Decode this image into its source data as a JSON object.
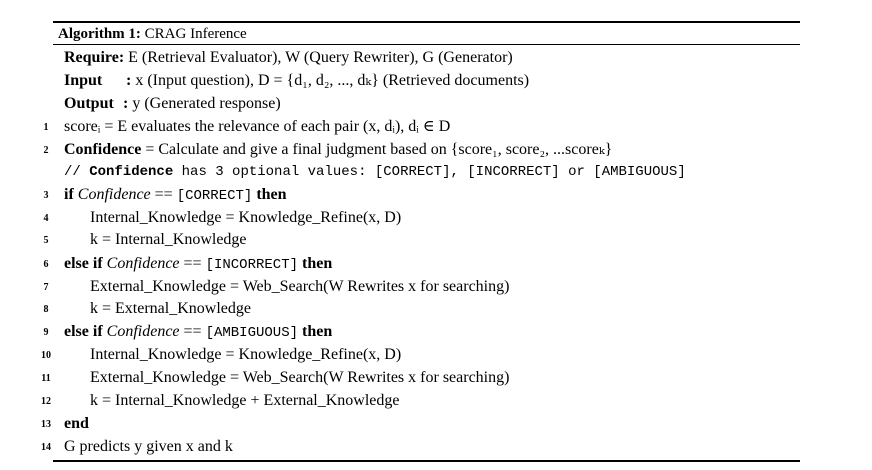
{
  "algorithm": {
    "caption_label": "Algorithm 1:",
    "caption_title": "CRAG Inference",
    "header": [
      {
        "kw": "Require",
        "sep": ":",
        "body": " E (Retrieval Evaluator), W (Query Rewriter), G (Generator)"
      },
      {
        "kw": "Input",
        "sep": ":",
        "body": " x (Input question), D = {d₁, d₂, ..., dₖ} (Retrieved documents)"
      },
      {
        "kw": "Output",
        "sep": ":",
        "body": " y (Generated response)"
      }
    ],
    "lines": [
      {
        "no": "1",
        "text": "scoreᵢ = E evaluates the relevance of each pair (x, dᵢ), dᵢ ∈ D"
      },
      {
        "no": "2",
        "kw": "Confidence",
        "text": " = Calculate and give a final judgment based on {score₁, score₂, ...scoreₖ}"
      },
      {
        "comment_prefix": "// ",
        "comment_kw": "Confidence",
        "comment_rest": " has 3 optional values: [CORRECT], [INCORRECT] or [AMBIGUOUS]"
      },
      {
        "no": "3",
        "kw": "if",
        "cond_var": " Confidence",
        "cond_op": " == ",
        "cond_val": "[CORRECT]",
        "kw2": " then"
      },
      {
        "no": "4",
        "text": "Internal_Knowledge = Knowledge_Refine(x, D)"
      },
      {
        "no": "5",
        "text": "k = Internal_Knowledge"
      },
      {
        "no": "6",
        "kw": "else if",
        "cond_var": " Confidence",
        "cond_op": " == ",
        "cond_val": "[INCORRECT]",
        "kw2": " then"
      },
      {
        "no": "7",
        "text": "External_Knowledge = Web_Search(W Rewrites x for searching)"
      },
      {
        "no": "8",
        "text": "k = External_Knowledge"
      },
      {
        "no": "9",
        "kw": "else if",
        "cond_var": " Confidence",
        "cond_op": " == ",
        "cond_val": "[AMBIGUOUS]",
        "kw2": " then"
      },
      {
        "no": "10",
        "text": "Internal_Knowledge = Knowledge_Refine(x, D)"
      },
      {
        "no": "11",
        "text": "External_Knowledge = Web_Search(W Rewrites x for searching)"
      },
      {
        "no": "12",
        "text": "k = Internal_Knowledge + External_Knowledge"
      },
      {
        "no": "13",
        "kw": "end"
      },
      {
        "no": "14",
        "text": "G predicts y given x and k"
      }
    ]
  }
}
